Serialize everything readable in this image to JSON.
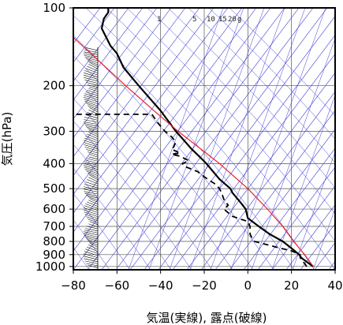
{
  "chart_data": {
    "type": "line",
    "subtype": "skew-T log-P thermodynamic diagram",
    "title": "",
    "xlabel": "気温(実線), 露点(破線)",
    "ylabel": "気圧(hPa)",
    "y_scale": "log-pressure (inverted)",
    "xlim": [
      -80,
      40
    ],
    "ylim": [
      1030,
      100
    ],
    "x_ticks": [
      -80,
      -60,
      -40,
      -20,
      0,
      20,
      40
    ],
    "x_tick_labels": [
      "−80",
      "−60",
      "−40",
      "−20",
      "0",
      "20",
      "40"
    ],
    "y_ticks": [
      100,
      200,
      300,
      400,
      500,
      600,
      700,
      800,
      900,
      1000
    ],
    "y_tick_labels": [
      "100",
      "200",
      "300",
      "400",
      "500",
      "600",
      "700",
      "800",
      "900",
      "1000"
    ],
    "mixing_ratio_labels": [
      "1",
      "5",
      "10",
      "15",
      "20",
      "g"
    ],
    "colors": {
      "temperature": "#000000",
      "dewpoint": "#000000",
      "parcel": "#e8202a",
      "guide_lines": "#3a3ad8",
      "grid": "#555555",
      "wind_barbs": "#000000"
    },
    "series": [
      {
        "name": "気温",
        "style": "solid",
        "points": [
          {
            "p": 1000,
            "t": 30
          },
          {
            "p": 960,
            "t": 27
          },
          {
            "p": 925,
            "t": 24.5
          },
          {
            "p": 900,
            "t": 23.5
          },
          {
            "p": 850,
            "t": 20
          },
          {
            "p": 800,
            "t": 16
          },
          {
            "p": 750,
            "t": 10
          },
          {
            "p": 700,
            "t": 5
          },
          {
            "p": 650,
            "t": 0
          },
          {
            "p": 600,
            "t": -1
          },
          {
            "p": 570,
            "t": -3
          },
          {
            "p": 520,
            "t": -7
          },
          {
            "p": 500,
            "t": -8
          },
          {
            "p": 460,
            "t": -13
          },
          {
            "p": 400,
            "t": -19
          },
          {
            "p": 370,
            "t": -23
          },
          {
            "p": 350,
            "t": -26
          },
          {
            "p": 320,
            "t": -30
          },
          {
            "p": 300,
            "t": -33
          },
          {
            "p": 250,
            "t": -40
          },
          {
            "p": 200,
            "t": -50
          },
          {
            "p": 170,
            "t": -57
          },
          {
            "p": 150,
            "t": -60
          },
          {
            "p": 140,
            "t": -63
          },
          {
            "p": 120,
            "t": -67
          },
          {
            "p": 110,
            "t": -66
          },
          {
            "p": 104,
            "t": -64
          },
          {
            "p": 100,
            "t": -64
          }
        ]
      },
      {
        "name": "露点",
        "style": "dashed",
        "points": [
          {
            "p": 1000,
            "t": 27
          },
          {
            "p": 925,
            "t": 24
          },
          {
            "p": 900,
            "t": 24
          },
          {
            "p": 870,
            "t": 20
          },
          {
            "p": 850,
            "t": 15
          },
          {
            "p": 800,
            "t": 3
          },
          {
            "p": 780,
            "t": 2
          },
          {
            "p": 750,
            "t": 1
          },
          {
            "p": 700,
            "t": 1
          },
          {
            "p": 670,
            "t": 0
          },
          {
            "p": 640,
            "t": -7
          },
          {
            "p": 600,
            "t": -11
          },
          {
            "p": 580,
            "t": -9
          },
          {
            "p": 550,
            "t": -11
          },
          {
            "p": 520,
            "t": -12
          },
          {
            "p": 500,
            "t": -13
          },
          {
            "p": 480,
            "t": -15
          },
          {
            "p": 450,
            "t": -20
          },
          {
            "p": 430,
            "t": -23
          },
          {
            "p": 410,
            "t": -29
          },
          {
            "p": 400,
            "t": -30
          },
          {
            "p": 390,
            "t": -27
          },
          {
            "p": 375,
            "t": -31
          },
          {
            "p": 368,
            "t": -35
          },
          {
            "p": 365,
            "t": -31
          },
          {
            "p": 358,
            "t": -33
          },
          {
            "p": 352,
            "t": -35
          },
          {
            "p": 345,
            "t": -34
          },
          {
            "p": 330,
            "t": -33
          },
          {
            "p": 315,
            "t": -35
          },
          {
            "p": 300,
            "t": -38
          },
          {
            "p": 280,
            "t": -41
          },
          {
            "p": 258,
            "t": -44
          },
          {
            "p": 258,
            "t": -80
          }
        ]
      },
      {
        "name": "",
        "style": "solid-red",
        "points": [
          {
            "p": 1000,
            "t": 30
          },
          {
            "p": 900,
            "t": 26
          },
          {
            "p": 800,
            "t": 21
          },
          {
            "p": 700,
            "t": 16
          },
          {
            "p": 600,
            "t": 9
          },
          {
            "p": 500,
            "t": 0
          },
          {
            "p": 400,
            "t": -13
          },
          {
            "p": 300,
            "t": -32
          },
          {
            "p": 250,
            "t": -43
          },
          {
            "p": 200,
            "t": -56
          },
          {
            "p": 150,
            "t": -72
          },
          {
            "p": 130,
            "t": -80
          }
        ]
      }
    ],
    "wind_barbs_present": true
  }
}
